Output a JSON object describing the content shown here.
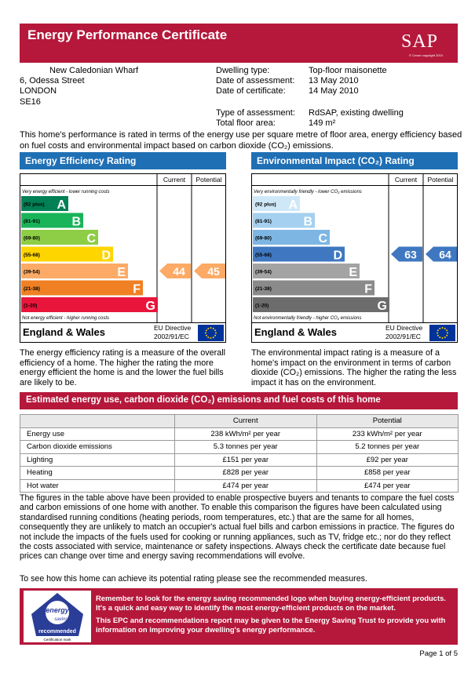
{
  "header": {
    "title": "Energy Performance Certificate",
    "logo": "SAP",
    "logo_note": "© Crown copyright 2010"
  },
  "address": [
    "New Caledonian Wharf",
    "6, Odessa Street",
    "LONDON",
    "SE16"
  ],
  "details": [
    {
      "label": "Dwelling type:",
      "value": "Top-floor maisonette"
    },
    {
      "label": "Date of assessment:",
      "value": "13 May 2010"
    },
    {
      "label": "Date of certificate:",
      "value": "14 May 2010"
    },
    {
      "label": "Type of assessment:",
      "value": "RdSAP, existing dwelling"
    },
    {
      "label": "Total floor area:",
      "value": "149 m²"
    }
  ],
  "intro": "This home's performance is rated in terms of the energy use per square metre of floor area, energy efficiency based on fuel costs and environmental impact based on carbon dioxide (CO₂) emissions.",
  "ratings": [
    {
      "title": "Energy Efficiency Rating",
      "current_label": "Current",
      "potential_label": "Potential",
      "top_note": "Very energy efficient - lower running costs",
      "bottom_note": "Not energy efficient - higher running costs",
      "bands": [
        {
          "range": "(92 plus)",
          "letter": "A"
        },
        {
          "range": "(81-91)",
          "letter": "B"
        },
        {
          "range": "(69-80)",
          "letter": "C"
        },
        {
          "range": "(55-68)",
          "letter": "D"
        },
        {
          "range": "(39-54)",
          "letter": "E"
        },
        {
          "range": "(21-38)",
          "letter": "F"
        },
        {
          "range": "(1-20)",
          "letter": "G"
        }
      ],
      "current": 44,
      "potential": 45,
      "region": "England & Wales",
      "directive": [
        "EU Directive",
        "2002/91/EC"
      ],
      "description": "The energy efficiency rating is a measure of the overall efficiency of a home. The higher the rating the more energy efficient the home is and the lower the fuel bills are likely to be."
    },
    {
      "title": "Environmental Impact (CO₂) Rating",
      "current_label": "Current",
      "potential_label": "Potential",
      "top_note": "Very environmentally friendly - lower CO₂ emissions",
      "bottom_note": "Not environmentally friendly - higher CO₂ emissions",
      "bands": [
        {
          "range": "(92 plus)",
          "letter": "A"
        },
        {
          "range": "(81-91)",
          "letter": "B"
        },
        {
          "range": "(69-80)",
          "letter": "C"
        },
        {
          "range": "(55-68)",
          "letter": "D"
        },
        {
          "range": "(39-54)",
          "letter": "E"
        },
        {
          "range": "(21-38)",
          "letter": "F"
        },
        {
          "range": "(1-20)",
          "letter": "G"
        }
      ],
      "current": 63,
      "potential": 64,
      "region": "England & Wales",
      "directive": [
        "EU Directive",
        "2002/91/EC"
      ],
      "description": "The environmental impact rating is a measure of a home's impact on the environment in terms of carbon dioxide (CO₂) emissions. The higher the rating the less impact it has on the environment."
    }
  ],
  "costs": {
    "title": "Estimated energy use, carbon dioxide (CO₂) emissions and fuel costs of this home",
    "header": [
      "Current",
      "Potential"
    ],
    "rows": [
      [
        "Energy use",
        "238 kWh/m² per year",
        "233 kWh/m² per year"
      ],
      [
        "Carbon dioxide emissions",
        "5.3 tonnes per year",
        "5.2 tonnes per year"
      ],
      [
        "Lighting",
        "£151 per year",
        "£92 per year"
      ],
      [
        "Heating",
        "£828 per year",
        "£858 per year"
      ],
      [
        "Hot water",
        "£474 per year",
        "£474 per year"
      ]
    ]
  },
  "body": "The figures in the table above have been provided to enable prospective buyers and tenants to compare the fuel costs and carbon emissions of one home with another. To enable this comparison the figures have been calculated using standardised running conditions (heating periods, room temperatures, etc.) that are the same for all homes, consequently they are unlikely to match an occupier's actual fuel bills and carbon emissions in practice. The figures do not include the impacts of the fuels used for cooking or running appliances, such as TV, fridge etc.; nor do they reflect the costs associated with service, maintenance or safety inspections. Always check the certificate date because fuel prices can change over time and energy saving recommendations will evolve.",
  "see_measures": "To see how this home can achieve its potential rating please see the recommended measures.",
  "footer": {
    "logo": [
      "energy",
      "saving",
      "recommended"
    ],
    "mark": "Certification mark",
    "text": [
      "Remember to look for the energy saving recommended logo when buying energy-efficient products. It's a quick and easy way to identify the most energy-efficient products on the market.",
      "This EPC and recommendations report may be given to the Energy Saving Trust to provide you with information on improving your dwelling's energy performance."
    ]
  },
  "page": "Page 1 of 5"
}
